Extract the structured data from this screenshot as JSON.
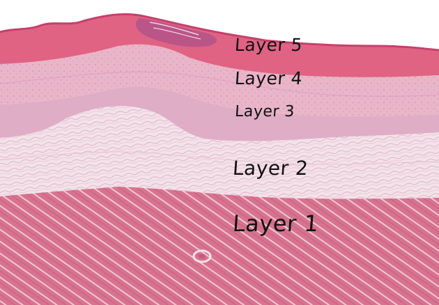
{
  "labels": {
    "layer5": "Layer 5",
    "layer4": "Layer 4",
    "layer3": "Layer 3",
    "layer2": "Layer 2",
    "layer1": "Layer 1"
  },
  "colors": {
    "background": "#ffffff",
    "layer5_tunica": "#e0607f",
    "layer4_band": "#eab6cb",
    "layer3_band": "#dba6c2",
    "layer2_loose": "#f4e3ea",
    "layer1_muscle": "#d9708d",
    "label_ink": "#111111"
  }
}
